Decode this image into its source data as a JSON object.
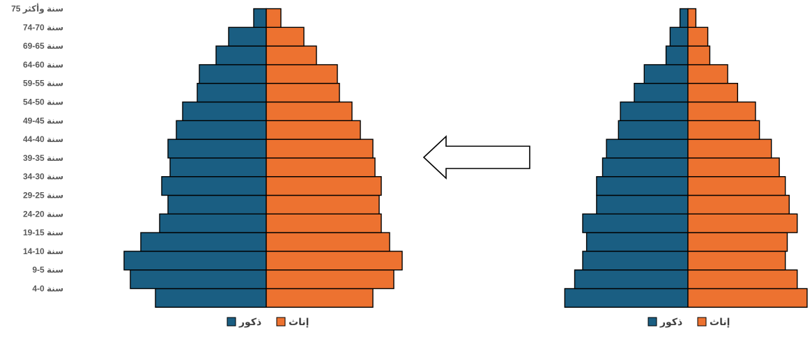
{
  "colors": {
    "male": "#1A5E82",
    "female": "#ED7230",
    "stroke": "#000000",
    "text": "#595959"
  },
  "legend": {
    "female": "إناث",
    "male": "ذكور"
  },
  "chart_data": [
    {
      "type": "bar",
      "orientation": "horizontal-population-pyramid",
      "title": "",
      "categories": [
        "4-0 سنة",
        "9-5 سنة",
        "14-10 سنة",
        "19-15 سنة",
        "24-20 سنة",
        "29-25 سنة",
        "34-30 سنة",
        "39-35 سنة",
        "44-40 سنة",
        "49-45 سنة",
        "54-50 سنة",
        "59-55 سنة",
        "64-60 سنة",
        "69-65 سنة",
        "74-70 سنة",
        "75 سنة وأكثر"
      ],
      "series": [
        {
          "name": "ذكور",
          "values": [
            5.3,
            6.5,
            6.8,
            6.0,
            5.1,
            4.7,
            5.0,
            4.6,
            4.7,
            4.3,
            4.0,
            3.3,
            3.2,
            2.4,
            1.8,
            0.6
          ]
        },
        {
          "name": "إناث",
          "values": [
            5.1,
            6.1,
            6.5,
            5.9,
            5.5,
            5.4,
            5.5,
            5.2,
            5.1,
            4.5,
            4.1,
            3.5,
            3.4,
            2.4,
            1.8,
            0.7
          ]
        }
      ],
      "legend_position": "bottom"
    },
    {
      "type": "bar",
      "orientation": "horizontal-population-pyramid",
      "title": "",
      "categories": [
        "4-0 سنة",
        "9-5 سنة",
        "14-10 سنة",
        "19-15 سنة",
        "24-20 سنة",
        "29-25 سنة",
        "34-30 سنة",
        "39-35 سنة",
        "44-40 سنة",
        "49-45 سنة",
        "54-50 سنة",
        "59-55 سنة",
        "64-60 سنة",
        "69-65 سنة",
        "74-70 سنة",
        "75 سنة وأكثر"
      ],
      "series": [
        {
          "name": "ذكور",
          "values": [
            6.2,
            5.7,
            5.3,
            5.1,
            5.3,
            4.6,
            4.6,
            4.3,
            4.1,
            3.5,
            3.4,
            2.7,
            2.2,
            1.1,
            0.9,
            0.4
          ]
        },
        {
          "name": "إناث",
          "values": [
            6.0,
            5.5,
            4.9,
            5.0,
            5.5,
            5.1,
            4.9,
            4.6,
            4.2,
            3.6,
            3.4,
            2.5,
            2.0,
            1.1,
            1.0,
            0.4
          ]
        }
      ],
      "legend_position": "bottom"
    }
  ]
}
